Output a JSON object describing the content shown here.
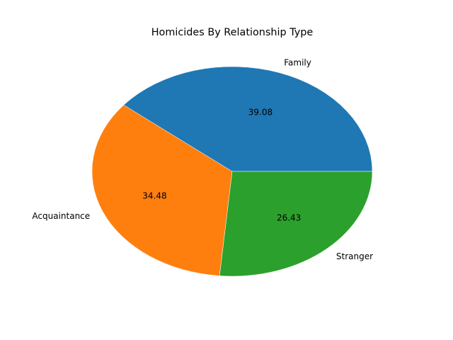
{
  "chart_data": {
    "type": "pie",
    "title": "Homicides By Relationship Type",
    "categories": [
      "Family",
      "Acquaintance",
      "Stranger"
    ],
    "values": [
      39.08,
      34.48,
      26.43
    ],
    "value_labels": [
      "39.08",
      "34.48",
      "26.43"
    ],
    "colors": [
      "#1f77b4",
      "#ff7f0e",
      "#2ca02c"
    ],
    "start_angle_deg": 0,
    "direction": "counterclockwise",
    "legend": "none"
  }
}
